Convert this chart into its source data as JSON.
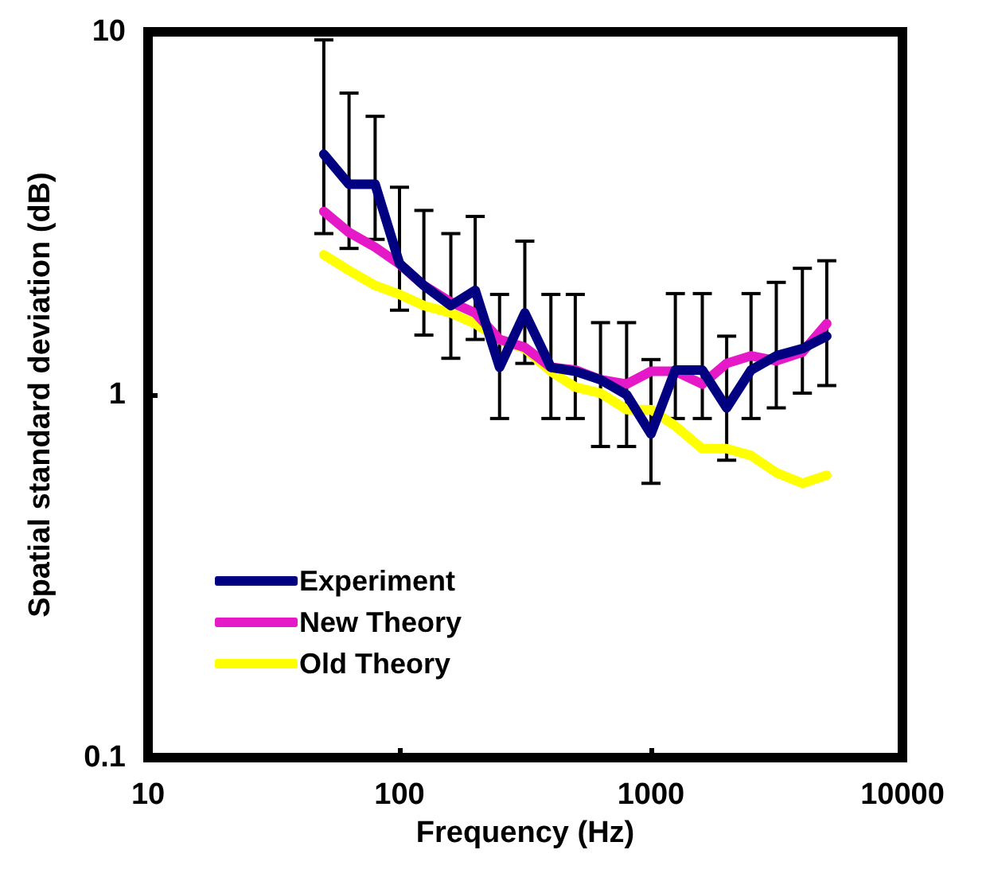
{
  "chart_data": {
    "type": "line",
    "xlabel": "Frequency (Hz)",
    "ylabel": "Spatial standard deviation (dB)",
    "log": "xy",
    "xlim": [
      10,
      10000
    ],
    "xticks": [
      10,
      100,
      1000,
      10000
    ],
    "ylim": [
      0.1,
      10
    ],
    "yticks": [
      0.1,
      1,
      10
    ],
    "grid": false,
    "legend": "bottom left",
    "marker": "none",
    "line_style": "solid",
    "x": [
      50,
      63,
      80,
      100,
      125,
      160,
      200,
      250,
      315,
      400,
      500,
      630,
      800,
      1000,
      1250,
      1600,
      2000,
      2500,
      3150,
      4000,
      5000
    ],
    "series": [
      {
        "name": "Experiment",
        "color": "#000080",
        "values": [
          4.6,
          3.8,
          3.8,
          2.3,
          2.0,
          1.76,
          1.94,
          1.19,
          1.68,
          1.19,
          1.16,
          1.1,
          1.0,
          0.78,
          1.17,
          1.17,
          0.92,
          1.17,
          1.28,
          1.34,
          1.45
        ],
        "errors": [
          [
            2.78,
            9.5
          ],
          [
            2.53,
            6.78
          ],
          [
            2.68,
            5.85
          ],
          [
            1.71,
            3.73
          ],
          [
            1.46,
            3.22
          ],
          [
            1.26,
            2.78
          ],
          [
            1.42,
            3.1
          ],
          [
            0.86,
            1.89
          ],
          [
            1.22,
            2.65
          ],
          [
            0.86,
            1.89
          ],
          [
            0.86,
            1.89
          ],
          [
            0.72,
            1.58
          ],
          [
            0.72,
            1.58
          ],
          [
            0.57,
            1.25
          ],
          [
            0.86,
            1.9
          ],
          [
            0.86,
            1.9
          ],
          [
            0.66,
            1.45
          ],
          [
            0.86,
            1.9
          ],
          [
            0.92,
            2.04
          ],
          [
            1.01,
            2.23
          ],
          [
            1.06,
            2.34
          ]
        ]
      },
      {
        "name": "New Theory",
        "color": "#e619c8",
        "values": [
          3.2,
          2.8,
          2.55,
          2.29,
          2.0,
          1.8,
          1.68,
          1.42,
          1.35,
          1.19,
          1.17,
          1.1,
          1.07,
          1.16,
          1.16,
          1.07,
          1.22,
          1.28,
          1.24,
          1.31,
          1.57
        ]
      },
      {
        "name": "Old Theory",
        "color": "#ffff00",
        "values": [
          2.43,
          2.2,
          2.0,
          1.89,
          1.76,
          1.68,
          1.57,
          1.42,
          1.34,
          1.16,
          1.05,
          1.01,
          0.91,
          0.91,
          0.82,
          0.71,
          0.71,
          0.68,
          0.61,
          0.57,
          0.6
        ]
      }
    ]
  }
}
